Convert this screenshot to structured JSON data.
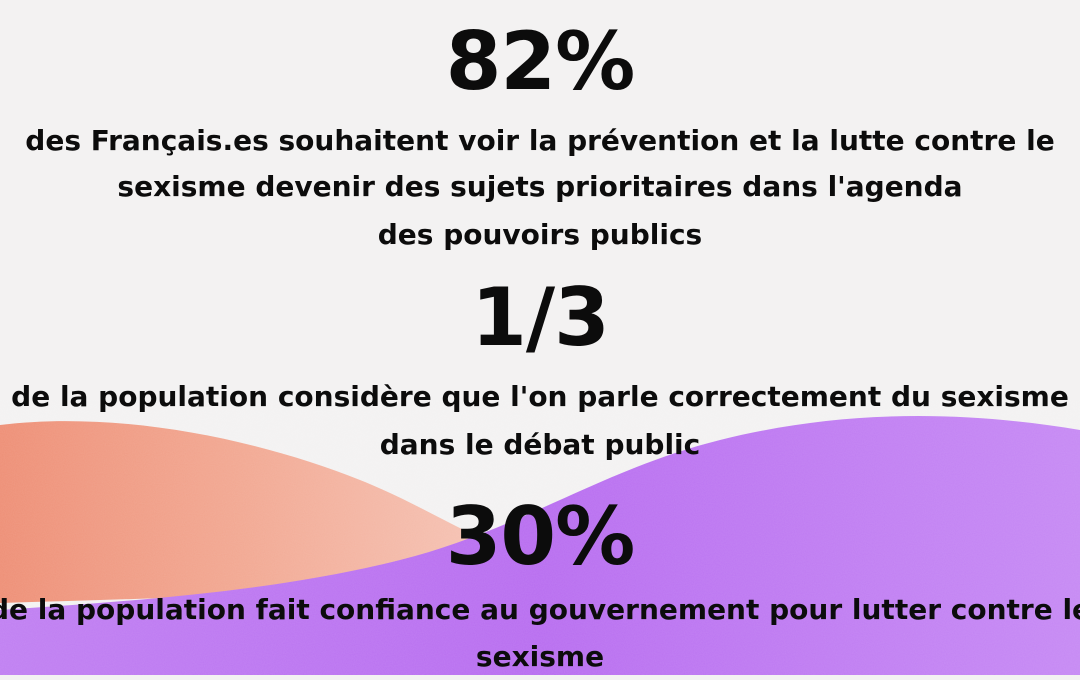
{
  "colors": {
    "background": "#f3f2f2",
    "accent_orange": "#ef9a82",
    "accent_purple": "#b86df0",
    "text": "#0c0c0c"
  },
  "stats": [
    {
      "value": "82%",
      "lines": [
        "des Français.es souhaitent voir la prévention et la lutte contre le",
        "sexisme devenir des sujets prioritaires dans l'agenda",
        "des pouvoirs publics"
      ]
    },
    {
      "value": "1/3",
      "lines": [
        "de la population considère que l'on parle correctement du sexisme",
        "dans le débat public"
      ]
    },
    {
      "value": "30%",
      "lines": [
        "de la population fait confiance au gouvernement pour lutter contre le",
        "sexisme"
      ]
    }
  ]
}
